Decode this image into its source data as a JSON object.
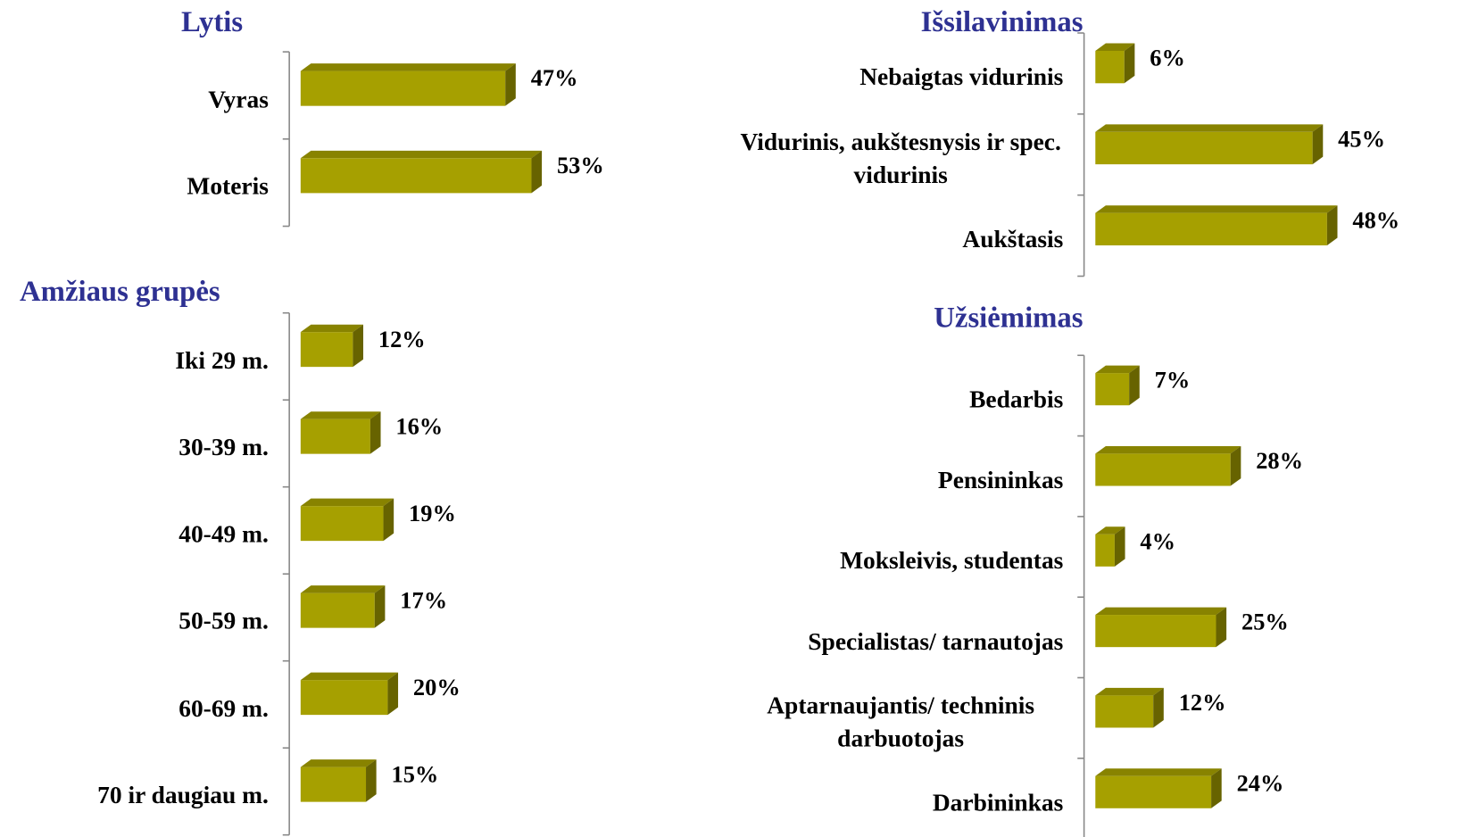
{
  "chart_data": [
    {
      "type": "bar",
      "title": "Lytis",
      "categories": [
        "Vyras",
        "Moteris"
      ],
      "values": [
        47,
        53
      ],
      "value_labels": [
        "47%",
        "53%"
      ],
      "color": "#a6a000"
    },
    {
      "type": "bar",
      "title": "Amžiaus grupės",
      "categories": [
        "Iki 29 m.",
        "30-39 m.",
        "40-49 m.",
        "50-59 m.",
        "60-69 m.",
        "70 ir daugiau m."
      ],
      "values": [
        12,
        16,
        19,
        17,
        20,
        15
      ],
      "value_labels": [
        "12%",
        "16%",
        "19%",
        "17%",
        "20%",
        "15%"
      ],
      "color": "#a6a000"
    },
    {
      "type": "bar",
      "title": "Išsilavinimas",
      "categories": [
        "Nebaigtas vidurinis",
        "Vidurinis, aukštesnysis ir spec. vidurinis",
        "Aukštasis"
      ],
      "values": [
        6,
        45,
        48
      ],
      "value_labels": [
        "6%",
        "45%",
        "48%"
      ],
      "color": "#a6a000"
    },
    {
      "type": "bar",
      "title": "Užsiėmimas",
      "categories": [
        "Bedarbis",
        "Pensininkas",
        "Moksleivis, studentas",
        "Specialistas/ tarnautojas",
        "Aptarnaujantis/ techninis darbuotojas",
        "Darbininkas"
      ],
      "values": [
        7,
        28,
        4,
        25,
        12,
        24
      ],
      "value_labels": [
        "7%",
        "28%",
        "4%",
        "25%",
        "12%",
        "24%"
      ],
      "color": "#a6a000"
    }
  ]
}
